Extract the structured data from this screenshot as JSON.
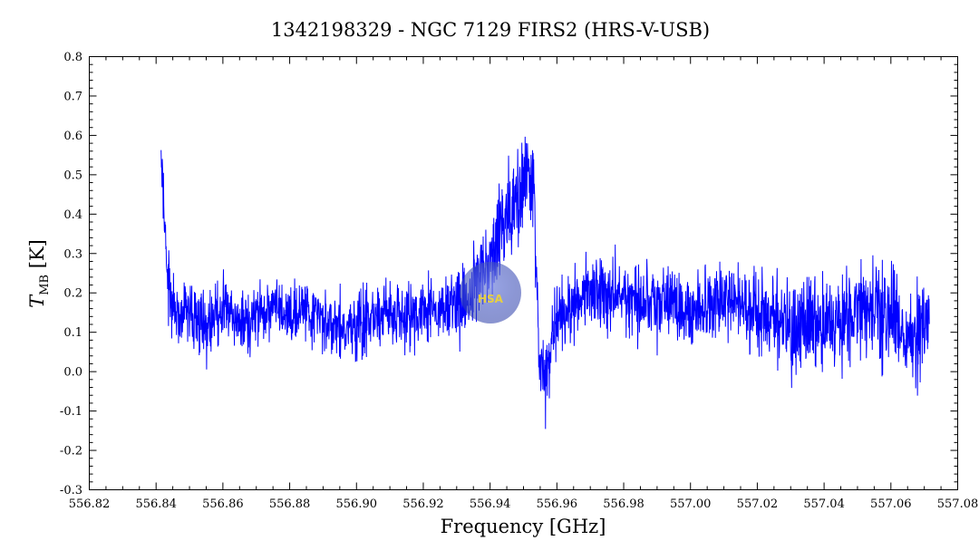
{
  "chart_data": {
    "type": "line",
    "title": "1342198329 - NGC 7129 FIRS2 (HRS-V-USB)",
    "xlabel": "Frequency [GHz]",
    "ylabel": {
      "main": "T",
      "sub": "MB",
      "unit": "[K]"
    },
    "xlim": [
      556.82,
      557.08
    ],
    "ylim": [
      -0.3,
      0.8
    ],
    "x_ticks": [
      556.82,
      556.84,
      556.86,
      556.88,
      556.9,
      556.92,
      556.94,
      556.96,
      556.98,
      557.0,
      557.02,
      557.04,
      557.06,
      557.08
    ],
    "x_tick_labels": [
      "556.82",
      "556.84",
      "556.86",
      "556.88",
      "556.90",
      "556.92",
      "556.94",
      "556.96",
      "556.98",
      "557.00",
      "557.02",
      "557.04",
      "557.06",
      "557.08"
    ],
    "y_ticks": [
      -0.3,
      -0.2,
      -0.1,
      0.0,
      0.1,
      0.2,
      0.3,
      0.4,
      0.5,
      0.6,
      0.7,
      0.8
    ],
    "y_tick_labels": [
      "-0.3",
      "-0.2",
      "-0.1",
      "0.0",
      "0.1",
      "0.2",
      "0.3",
      "0.4",
      "0.5",
      "0.6",
      "0.7",
      "0.8"
    ],
    "grid": false,
    "series": [
      {
        "color": "#0000ff",
        "x": [
          556.8415,
          556.842,
          556.843,
          556.844,
          556.845,
          556.846,
          556.848,
          556.85,
          556.852,
          556.855,
          556.86,
          556.865,
          556.87,
          556.875,
          556.88,
          556.885,
          556.89,
          556.895,
          556.9,
          556.905,
          556.91,
          556.915,
          556.92,
          556.925,
          556.93,
          556.935,
          556.938,
          556.941,
          556.944,
          556.947,
          556.95,
          556.952,
          556.953,
          556.954,
          556.955,
          556.956,
          556.958,
          556.96,
          556.965,
          556.97,
          556.975,
          556.98,
          556.985,
          556.99,
          556.995,
          557.0,
          557.005,
          557.01,
          557.015,
          557.02,
          557.025,
          557.03,
          557.035,
          557.04,
          557.045,
          557.05,
          557.055,
          557.06,
          557.065,
          557.068,
          557.07,
          557.0715
        ],
        "y": [
          0.55,
          0.45,
          0.3,
          0.2,
          0.16,
          0.15,
          0.14,
          0.15,
          0.13,
          0.12,
          0.14,
          0.12,
          0.15,
          0.16,
          0.14,
          0.15,
          0.13,
          0.12,
          0.12,
          0.14,
          0.15,
          0.14,
          0.16,
          0.15,
          0.17,
          0.2,
          0.25,
          0.3,
          0.38,
          0.42,
          0.48,
          0.5,
          0.45,
          0.2,
          0.05,
          0.0,
          0.05,
          0.12,
          0.18,
          0.2,
          0.2,
          0.19,
          0.18,
          0.18,
          0.17,
          0.16,
          0.16,
          0.18,
          0.17,
          0.15,
          0.13,
          0.1,
          0.12,
          0.1,
          0.14,
          0.16,
          0.17,
          0.14,
          0.1,
          0.08,
          0.1,
          0.15
        ],
        "noise": [
          0.03,
          0.12,
          0.1,
          0.09,
          0.09,
          0.08,
          0.08,
          0.08,
          0.08,
          0.08,
          0.08,
          0.08,
          0.08,
          0.08,
          0.08,
          0.08,
          0.08,
          0.08,
          0.08,
          0.08,
          0.08,
          0.08,
          0.08,
          0.08,
          0.09,
          0.1,
          0.1,
          0.11,
          0.12,
          0.12,
          0.12,
          0.12,
          0.12,
          0.1,
          0.1,
          0.1,
          0.1,
          0.1,
          0.09,
          0.09,
          0.09,
          0.09,
          0.09,
          0.09,
          0.09,
          0.09,
          0.09,
          0.09,
          0.09,
          0.1,
          0.11,
          0.12,
          0.12,
          0.12,
          0.12,
          0.12,
          0.13,
          0.13,
          0.13,
          0.13,
          0.12,
          0.08
        ]
      }
    ],
    "watermark": {
      "text": "HSA",
      "color": "#3c50c8"
    }
  }
}
